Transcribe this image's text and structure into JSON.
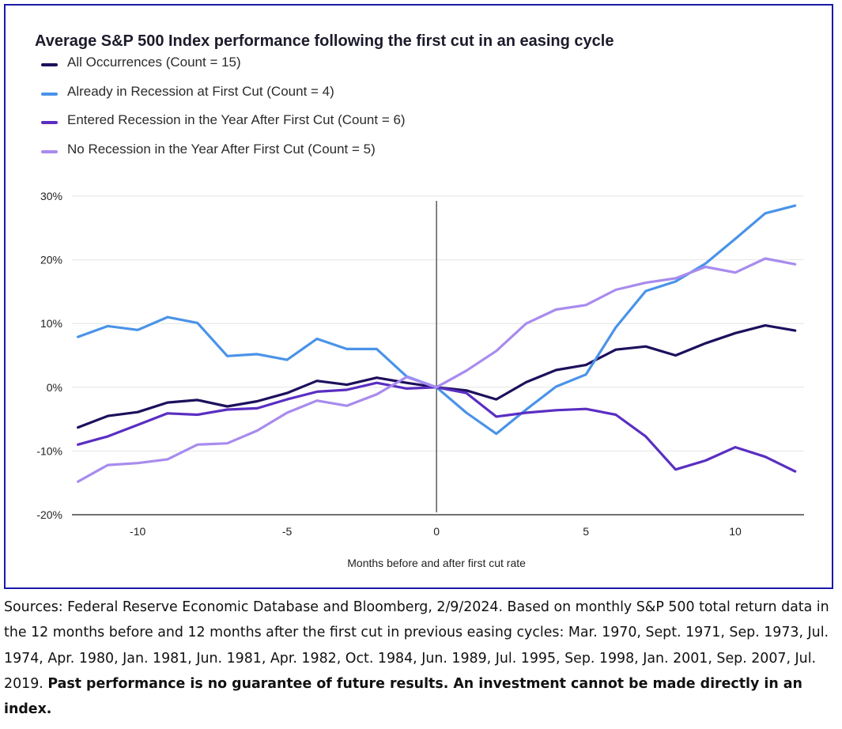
{
  "chart_data": {
    "type": "line",
    "title": "Average S&P 500 Index performance following the first cut in an easing cycle",
    "xlabel": "Months before and after first cut rate",
    "ylabel": "",
    "x": [
      -12,
      -11,
      -10,
      -9,
      -8,
      -7,
      -6,
      -5,
      -4,
      -3,
      -2,
      -1,
      0,
      1,
      2,
      3,
      4,
      5,
      6,
      7,
      8,
      9,
      10,
      11,
      12
    ],
    "xlim": [
      -12.2,
      12.3
    ],
    "ylim": [
      -20,
      30
    ],
    "xticks": [
      -10,
      -5,
      0,
      5,
      10
    ],
    "xtick_labels": [
      "-10",
      "-5",
      "0",
      "5",
      "10"
    ],
    "yticks": [
      -20,
      -10,
      0,
      10,
      20,
      30
    ],
    "ytick_labels": [
      "-20%",
      "-10%",
      "0%",
      "10%",
      "20%",
      "30%"
    ],
    "grid": "horizontal",
    "legend_position": "top-left",
    "vertical_reference_line_at": 0,
    "series": [
      {
        "name": "All Occurrences (Count = 15)",
        "color": "#1e0f5c",
        "values": [
          -6.3,
          -4.5,
          -3.9,
          -2.4,
          -2.0,
          -3.0,
          -2.2,
          -0.9,
          1.0,
          0.4,
          1.5,
          0.7,
          0.0,
          -0.5,
          -1.9,
          0.8,
          2.7,
          3.5,
          5.9,
          6.4,
          5.0,
          6.9,
          8.5,
          9.7,
          8.9
        ]
      },
      {
        "name": "Already in Recession at First Cut (Count = 4)",
        "color": "#4a93e8",
        "values": [
          7.9,
          9.6,
          9.0,
          11.0,
          10.1,
          4.9,
          5.2,
          4.3,
          7.6,
          6.0,
          6.0,
          1.7,
          0.0,
          -4.0,
          -7.3,
          -3.5,
          0.1,
          2.0,
          9.4,
          15.1,
          16.6,
          19.4,
          23.3,
          27.3,
          28.5
        ]
      },
      {
        "name": "Entered Recession in the Year After First Cut (Count = 6)",
        "color": "#5a2ec2",
        "values": [
          -9.0,
          -7.7,
          -5.9,
          -4.1,
          -4.3,
          -3.5,
          -3.3,
          -1.9,
          -0.7,
          -0.4,
          0.7,
          -0.2,
          0.0,
          -0.9,
          -4.6,
          -4.0,
          -3.6,
          -3.4,
          -4.3,
          -7.7,
          -12.9,
          -11.5,
          -9.4,
          -10.9,
          -13.2
        ]
      },
      {
        "name": "No Recession in the Year After First Cut (Count = 5)",
        "color": "#a88bee",
        "values": [
          -14.8,
          -12.2,
          -11.9,
          -11.3,
          -9.0,
          -8.8,
          -6.8,
          -4.0,
          -2.1,
          -2.9,
          -1.1,
          1.6,
          0.0,
          2.6,
          5.7,
          10.0,
          12.2,
          12.9,
          15.3,
          16.4,
          17.1,
          18.9,
          18.0,
          20.2,
          19.3
        ]
      }
    ]
  },
  "footer": {
    "sources_text": "Sources: Federal Reserve Economic Database and Bloomberg, 2/9/2024. Based on monthly S&P 500 total return data in the 12 months before and 12 months after the first cut in previous easing cycles: Mar. 1970, Sept. 1971, Sep. 1973, Jul. 1974, Apr. 1980, Jan. 1981, Jun. 1981, Apr. 1982, Oct. 1984, Jun. 1989, Jul. 1995, Sep. 1998, Jan. 2001, Sep. 2007, Jul. 2019.",
    "disclaimer_text": "Past performance is no guarantee of future results. An investment cannot be made directly in an index."
  }
}
